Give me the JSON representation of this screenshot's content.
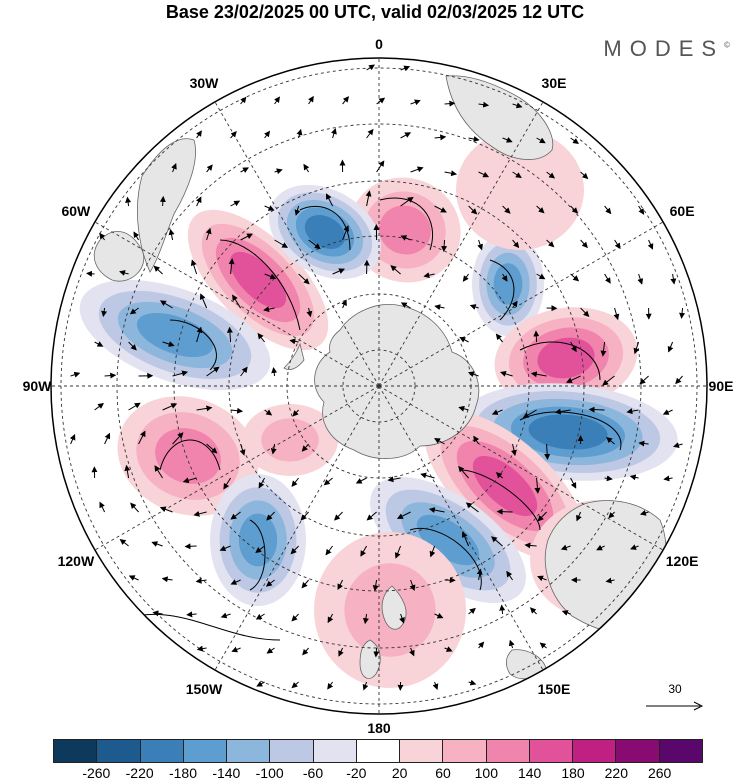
{
  "title": "Base 23/02/2025 00 UTC, valid 02/03/2025 12 UTC",
  "brand": "MODES",
  "brand_mark": "©",
  "longitude_labels": [
    "0",
    "30E",
    "60E",
    "90E",
    "120E",
    "150E",
    "180",
    "150W",
    "120W",
    "90W",
    "60W",
    "30W"
  ],
  "vector_scale": {
    "label": "30"
  },
  "colorbar": {
    "ticks": [
      "-260",
      "-220",
      "-180",
      "-140",
      "-100",
      "-60",
      "-20",
      "20",
      "60",
      "100",
      "140",
      "180",
      "220",
      "260"
    ],
    "colors": [
      "#0d3a5c",
      "#1d5b8e",
      "#3a7fb8",
      "#5d9dcf",
      "#8db6dc",
      "#bcc8e4",
      "#e2e2f0",
      "#ffffff",
      "#f8d4d8",
      "#f6b1c2",
      "#f184ad",
      "#e2529b",
      "#c02082",
      "#880b72",
      "#5a076b"
    ]
  },
  "colors": {
    "land": "#e6e6e6",
    "grid": "#333333",
    "anomaly_pos": "#f184ad",
    "anomaly_neg": "#3a7fb8"
  }
}
